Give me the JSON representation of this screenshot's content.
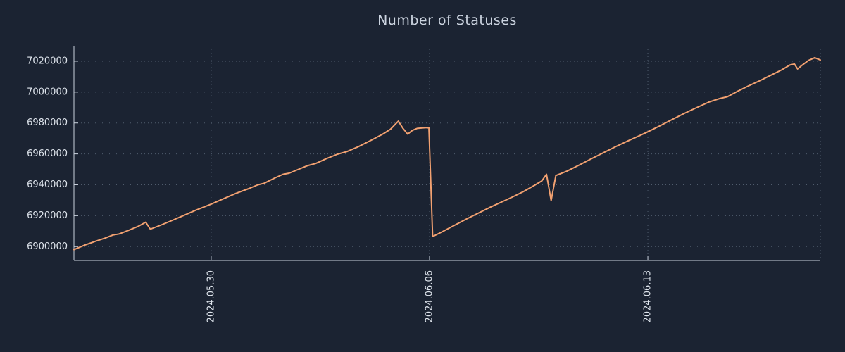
{
  "chart_data": {
    "type": "line",
    "title": "Number of Statuses",
    "xlabel": "",
    "ylabel": "",
    "grid": true,
    "legend": "none",
    "xlim": [
      0,
      23.93
    ],
    "ylim": [
      6891000,
      7030000
    ],
    "y_ticks": [
      6900000,
      6920000,
      6940000,
      6960000,
      6980000,
      7000000,
      7020000
    ],
    "x_ticks": [
      {
        "label": "2024.05.30",
        "day": 4.4
      },
      {
        "label": "2024.06.06",
        "day": 11.4
      },
      {
        "label": "2024.06.13",
        "day": 18.4
      }
    ],
    "series": [
      {
        "name": "statuses",
        "x_days": [
          0,
          0.35,
          0.7,
          1.0,
          1.25,
          1.45,
          1.75,
          2.05,
          2.3,
          2.45,
          2.8,
          3.1,
          3.5,
          3.9,
          4.4,
          4.8,
          5.2,
          5.6,
          5.9,
          6.1,
          6.45,
          6.7,
          6.9,
          7.2,
          7.5,
          7.75,
          8.1,
          8.45,
          8.75,
          9.1,
          9.5,
          9.9,
          10.15,
          10.4,
          10.55,
          10.7,
          10.85,
          11.0,
          11.3,
          11.38,
          11.5,
          11.8,
          12.2,
          12.6,
          13.0,
          13.35,
          13.7,
          14.05,
          14.4,
          14.75,
          15.0,
          15.15,
          15.3,
          15.45,
          15.8,
          16.2,
          16.6,
          17.0,
          17.4,
          17.8,
          18.15,
          18.4,
          18.8,
          19.2,
          19.6,
          20.0,
          20.35,
          20.7,
          20.95,
          21.25,
          21.6,
          22.0,
          22.35,
          22.7,
          22.95,
          23.1,
          23.2,
          23.35,
          23.55,
          23.75,
          23.93
        ],
        "values": [
          6898000,
          6901000,
          6903500,
          6905500,
          6907500,
          6908200,
          6910500,
          6913000,
          6915800,
          6911300,
          6914000,
          6916500,
          6920000,
          6923500,
          6927500,
          6931000,
          6934500,
          6937500,
          6940000,
          6941000,
          6944500,
          6946800,
          6947500,
          6950000,
          6952500,
          6953800,
          6957000,
          6959800,
          6961500,
          6964500,
          6968500,
          6972800,
          6976000,
          6981200,
          6976500,
          6972800,
          6975200,
          6976500,
          6977000,
          6976800,
          6906500,
          6909500,
          6913800,
          6918000,
          6922000,
          6925500,
          6928800,
          6932000,
          6935500,
          6939500,
          6942500,
          6946800,
          6929800,
          6946000,
          6948800,
          6952800,
          6957000,
          6961000,
          6965000,
          6968800,
          6972000,
          6974300,
          6978300,
          6982500,
          6986500,
          6990300,
          6993500,
          6995800,
          6997000,
          7000300,
          7003800,
          7007500,
          7011000,
          7014500,
          7017500,
          7018200,
          7015000,
          7017500,
          7020500,
          7022300,
          7020800
        ]
      }
    ],
    "colors": {
      "background": "#1b2332",
      "line": "#f2a171",
      "grid": "#93a1b5",
      "axis": "#c9d1dc",
      "text": "#dfe5ed",
      "title": "#ccd4e0"
    }
  }
}
